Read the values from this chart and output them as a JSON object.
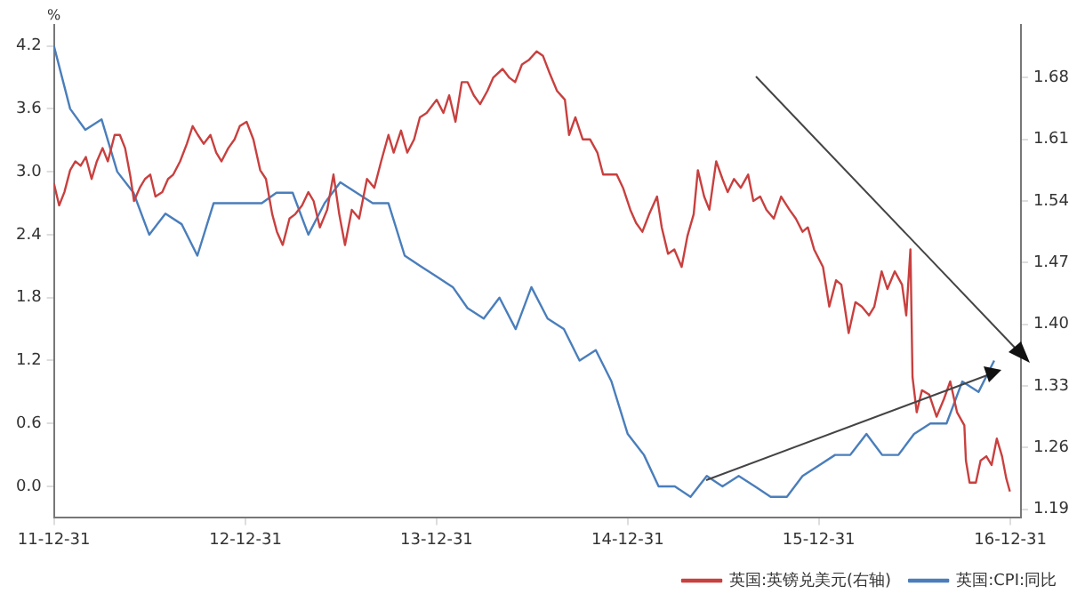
{
  "chart_data": {
    "type": "line",
    "ylabel": "%",
    "legend": "bottom",
    "marker": "none",
    "line_style": "solid",
    "grid": false,
    "xlim": [
      "2011-12-31",
      "2017-01-20"
    ],
    "xticks": [
      {
        "value": "2011-12-31",
        "label": "11-12-31"
      },
      {
        "value": "2012-12-31",
        "label": "12-12-31"
      },
      {
        "value": "2013-12-31",
        "label": "13-12-31"
      },
      {
        "value": "2014-12-31",
        "label": "14-12-31"
      },
      {
        "value": "2015-12-31",
        "label": "15-12-31"
      },
      {
        "value": "2016-12-31",
        "label": "16-12-31"
      }
    ],
    "ylim": [
      -0.3,
      4.4
    ],
    "yticks": [
      {
        "value": 0,
        "label": "0.0"
      },
      0.6,
      1.2,
      1.8,
      2.4,
      {
        "value": 3,
        "label": "3.0"
      },
      3.6,
      4.2
    ],
    "y2lim": [
      1.18,
      1.74
    ],
    "y2ticks": [
      1.19,
      1.26,
      1.33,
      {
        "value": 1.4,
        "label": "1.40"
      },
      1.47,
      1.54,
      1.61,
      1.68
    ],
    "series": [
      {
        "name": "英国:英镑兑美元(右轴)",
        "color": "#c8403f",
        "axis": "y2",
        "x": [
          "2011-12-31",
          "2012-01-10",
          "2012-01-20",
          "2012-01-31",
          "2012-02-10",
          "2012-02-20",
          "2012-03-01",
          "2012-03-12",
          "2012-03-22",
          "2012-04-02",
          "2012-04-12",
          "2012-04-25",
          "2012-05-05",
          "2012-05-15",
          "2012-05-25",
          "2012-06-01",
          "2012-06-12",
          "2012-06-22",
          "2012-07-02",
          "2012-07-12",
          "2012-07-25",
          "2012-08-05",
          "2012-08-15",
          "2012-08-28",
          "2012-09-10",
          "2012-09-21",
          "2012-10-01",
          "2012-10-12",
          "2012-10-25",
          "2012-11-05",
          "2012-11-15",
          "2012-11-28",
          "2012-12-10",
          "2012-12-20",
          "2013-01-02",
          "2013-01-15",
          "2013-01-28",
          "2013-02-08",
          "2013-02-20",
          "2013-03-01",
          "2013-03-12",
          "2013-03-25",
          "2013-04-05",
          "2013-04-18",
          "2013-04-30",
          "2013-05-10",
          "2013-05-22",
          "2013-06-05",
          "2013-06-17",
          "2013-06-28",
          "2013-07-09",
          "2013-07-22",
          "2013-08-05",
          "2013-08-20",
          "2013-09-03",
          "2013-09-16",
          "2013-09-30",
          "2013-10-10",
          "2013-10-24",
          "2013-11-05",
          "2013-11-18",
          "2013-11-29",
          "2013-12-12",
          "2013-12-31",
          "2014-01-13",
          "2014-01-24",
          "2014-02-05",
          "2014-02-17",
          "2014-02-28",
          "2014-03-12",
          "2014-03-24",
          "2014-04-07",
          "2014-04-18",
          "2014-05-06",
          "2014-05-19",
          "2014-05-30",
          "2014-06-12",
          "2014-06-25",
          "2014-07-10",
          "2014-07-22",
          "2014-08-04",
          "2014-08-18",
          "2014-09-02",
          "2014-09-10",
          "2014-09-22",
          "2014-10-06",
          "2014-10-20",
          "2014-11-03",
          "2014-11-14",
          "2014-11-28",
          "2014-12-10",
          "2014-12-22",
          "2015-01-05",
          "2015-01-16",
          "2015-01-28",
          "2015-02-10",
          "2015-02-25",
          "2015-03-06",
          "2015-03-18",
          "2015-03-30",
          "2015-04-13",
          "2015-04-24",
          "2015-05-06",
          "2015-05-14",
          "2015-05-26",
          "2015-06-05",
          "2015-06-18",
          "2015-06-30",
          "2015-07-10",
          "2015-07-22",
          "2015-08-04",
          "2015-08-18",
          "2015-08-28",
          "2015-09-10",
          "2015-09-22",
          "2015-10-06",
          "2015-10-20",
          "2015-11-05",
          "2015-11-17",
          "2015-11-30",
          "2015-12-10",
          "2015-12-22",
          "2016-01-08",
          "2016-01-20",
          "2016-02-02",
          "2016-02-12",
          "2016-02-26",
          "2016-03-10",
          "2016-03-22",
          "2016-04-05",
          "2016-04-15",
          "2016-04-29",
          "2016-05-10",
          "2016-05-24",
          "2016-06-07",
          "2016-06-15",
          "2016-06-23",
          "2016-06-27",
          "2016-07-05",
          "2016-07-15",
          "2016-07-29",
          "2016-08-12",
          "2016-08-26",
          "2016-09-07",
          "2016-09-20",
          "2016-10-04",
          "2016-10-07",
          "2016-10-14",
          "2016-10-26",
          "2016-11-04",
          "2016-11-15",
          "2016-11-25",
          "2016-12-05",
          "2016-12-15",
          "2016-12-23",
          "2016-12-30"
        ],
        "values": [
          1.56,
          1.535,
          1.55,
          1.575,
          1.585,
          1.58,
          1.59,
          1.565,
          1.585,
          1.6,
          1.585,
          1.615,
          1.615,
          1.6,
          1.568,
          1.54,
          1.555,
          1.565,
          1.57,
          1.545,
          1.55,
          1.565,
          1.57,
          1.585,
          1.605,
          1.625,
          1.615,
          1.605,
          1.615,
          1.595,
          1.585,
          1.6,
          1.61,
          1.625,
          1.63,
          1.61,
          1.575,
          1.565,
          1.525,
          1.505,
          1.49,
          1.52,
          1.525,
          1.535,
          1.55,
          1.54,
          1.51,
          1.53,
          1.57,
          1.525,
          1.49,
          1.53,
          1.52,
          1.565,
          1.555,
          1.585,
          1.615,
          1.595,
          1.62,
          1.595,
          1.61,
          1.635,
          1.64,
          1.655,
          1.64,
          1.66,
          1.63,
          1.675,
          1.675,
          1.66,
          1.65,
          1.665,
          1.68,
          1.69,
          1.68,
          1.675,
          1.695,
          1.7,
          1.71,
          1.705,
          1.685,
          1.665,
          1.655,
          1.615,
          1.635,
          1.61,
          1.61,
          1.595,
          1.57,
          1.57,
          1.57,
          1.555,
          1.53,
          1.515,
          1.505,
          1.525,
          1.545,
          1.51,
          1.48,
          1.485,
          1.465,
          1.5,
          1.525,
          1.575,
          1.545,
          1.53,
          1.585,
          1.565,
          1.55,
          1.565,
          1.555,
          1.57,
          1.54,
          1.545,
          1.53,
          1.52,
          1.545,
          1.53,
          1.52,
          1.505,
          1.51,
          1.485,
          1.465,
          1.42,
          1.45,
          1.445,
          1.39,
          1.425,
          1.42,
          1.41,
          1.42,
          1.46,
          1.44,
          1.46,
          1.445,
          1.41,
          1.485,
          1.34,
          1.3,
          1.325,
          1.32,
          1.295,
          1.315,
          1.335,
          1.3,
          1.285,
          1.245,
          1.22,
          1.22,
          1.245,
          1.25,
          1.24,
          1.27,
          1.25,
          1.225,
          1.21
        ]
      },
      {
        "name": "英国:CPI:同比",
        "color": "#4a7ebb",
        "x": [
          "2011-12-31",
          "2012-01-31",
          "2012-02-29",
          "2012-03-31",
          "2012-04-30",
          "2012-05-31",
          "2012-06-30",
          "2012-07-31",
          "2012-08-31",
          "2012-09-30",
          "2012-10-31",
          "2012-11-30",
          "2012-12-31",
          "2013-01-31",
          "2013-02-28",
          "2013-03-31",
          "2013-04-30",
          "2013-05-31",
          "2013-06-30",
          "2013-07-31",
          "2013-08-31",
          "2013-09-30",
          "2013-10-31",
          "2013-11-30",
          "2013-12-31",
          "2014-01-31",
          "2014-02-28",
          "2014-03-31",
          "2014-04-30",
          "2014-05-31",
          "2014-06-30",
          "2014-07-31",
          "2014-08-31",
          "2014-09-30",
          "2014-10-31",
          "2014-11-30",
          "2014-12-31",
          "2015-01-31",
          "2015-02-28",
          "2015-03-31",
          "2015-04-30",
          "2015-05-31",
          "2015-06-30",
          "2015-07-31",
          "2015-08-31",
          "2015-09-30",
          "2015-10-31",
          "2015-11-30",
          "2015-12-31",
          "2016-01-31",
          "2016-02-29",
          "2016-03-31",
          "2016-04-30",
          "2016-05-31",
          "2016-06-30",
          "2016-07-31",
          "2016-08-31",
          "2016-09-30",
          "2016-10-31",
          "2016-11-30"
        ],
        "values": [
          4.2,
          3.6,
          3.4,
          3.5,
          3.0,
          2.8,
          2.4,
          2.6,
          2.5,
          2.2,
          2.7,
          2.7,
          2.7,
          2.7,
          2.8,
          2.8,
          2.4,
          2.7,
          2.9,
          2.8,
          2.7,
          2.7,
          2.2,
          2.1,
          2.0,
          1.9,
          1.7,
          1.6,
          1.8,
          1.5,
          1.9,
          1.6,
          1.5,
          1.2,
          1.3,
          1.0,
          0.5,
          0.3,
          0.0,
          0.0,
          -0.1,
          0.1,
          0.0,
          0.1,
          0.0,
          -0.1,
          -0.1,
          0.1,
          0.2,
          0.3,
          0.3,
          0.5,
          0.3,
          0.3,
          0.5,
          0.6,
          0.6,
          1.0,
          0.9,
          1.2
        ]
      }
    ]
  }
}
